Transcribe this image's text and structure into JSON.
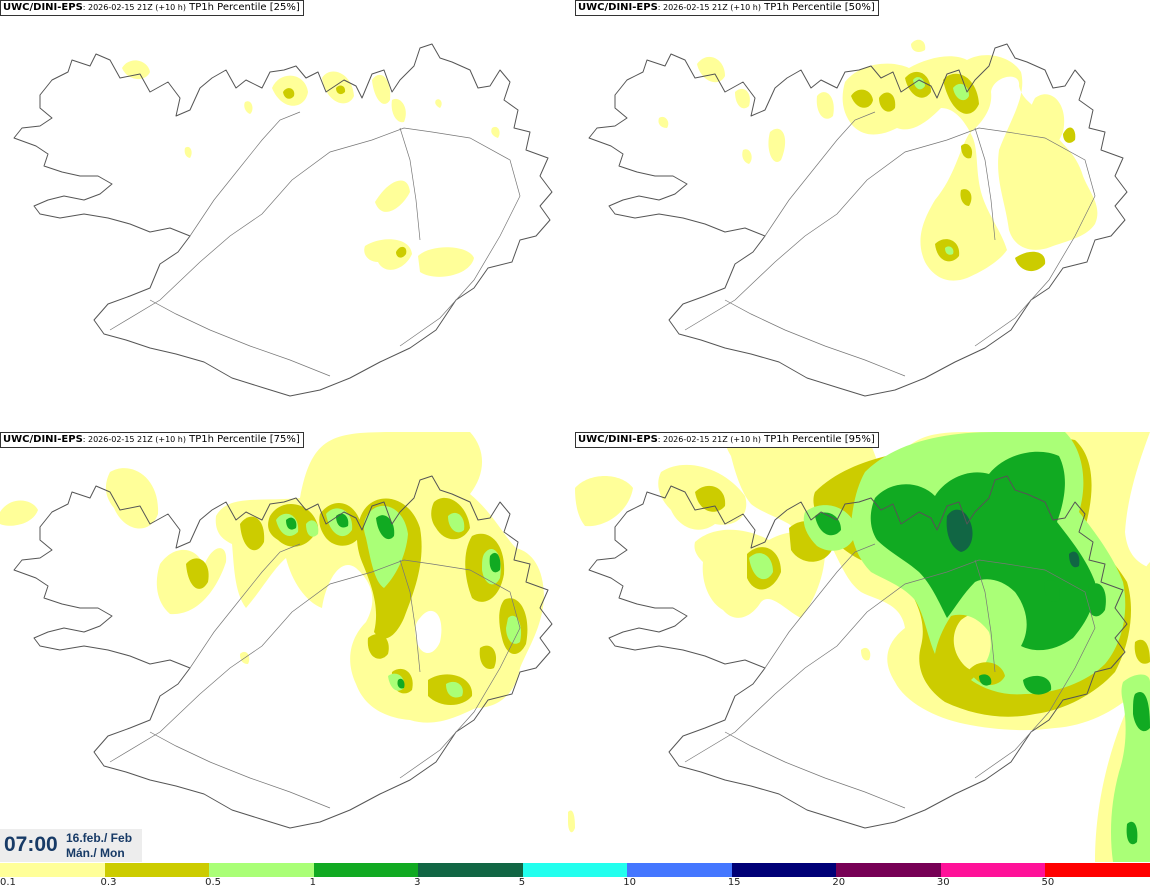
{
  "panels": [
    {
      "model": "UWC/DINI-EPS",
      "run": ": 2026-02-15 21Z (+10 h)",
      "label": " TP1h Percentile [25%]"
    },
    {
      "model": "UWC/DINI-EPS",
      "run": ": 2026-02-15 21Z (+10 h)",
      "label": " TP1h Percentile [50%]"
    },
    {
      "model": "UWC/DINI-EPS",
      "run": ": 2026-02-15 21Z (+10 h)",
      "label": " TP1h Percentile [75%]"
    },
    {
      "model": "UWC/DINI-EPS",
      "run": ": 2026-02-15 21Z (+10 h)",
      "label": " TP1h Percentile [95%]"
    }
  ],
  "valid_time": {
    "time": "07:00",
    "date_line1": "16.feb./ Feb",
    "date_line2": "Mán./ Mon"
  },
  "colorbar": {
    "colors": [
      "#ffff99",
      "#cccc00",
      "#aaff77",
      "#11aa22",
      "#116644",
      "#22ffee",
      "#4477ff",
      "#000077",
      "#770055",
      "#ff1199",
      "#ff0000"
    ],
    "ticks": [
      "0.1",
      "0.3",
      "0.5",
      "1",
      "3",
      "5",
      "10",
      "15",
      "20",
      "30",
      "50"
    ]
  },
  "colors": {
    "level_0_1": "#ffff99",
    "level_0_3": "#cccc00",
    "level_0_5": "#aaff77",
    "level_1": "#11aa22",
    "level_3": "#116644",
    "coast": "#555555"
  }
}
